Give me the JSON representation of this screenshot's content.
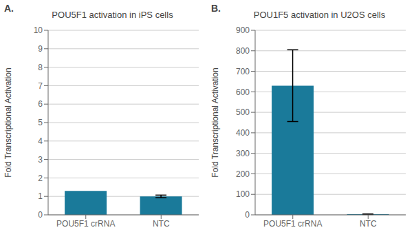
{
  "chart_data": [
    {
      "type": "bar",
      "title": "POU5F1 activation in iPS cells",
      "annotations": [
        "A."
      ],
      "categories": [
        "POU5F1 crRNA",
        "NTC"
      ],
      "values": [
        1.3,
        1.0
      ],
      "errors": [
        0.0,
        0.07
      ],
      "ylabel": "Fold Transcriptional Activation",
      "color": "#1a7a9a",
      "ylim": [
        0,
        10
      ],
      "yticks": [
        0,
        1,
        2,
        3,
        4,
        5,
        6,
        7,
        8,
        9,
        10
      ],
      "grid": true
    },
    {
      "type": "bar",
      "title": "POU1F5 activation in U2OS cells",
      "annotations": [
        "B."
      ],
      "categories": [
        "POU5F1 crRNA",
        "NTC"
      ],
      "values": [
        630,
        3
      ],
      "errors": [
        175,
        1
      ],
      "ylabel": "Fold Transcriptional Activation",
      "color": "#1a7a9a",
      "ylim": [
        0,
        900
      ],
      "yticks": [
        0,
        100,
        200,
        300,
        400,
        500,
        600,
        700,
        800,
        900
      ],
      "grid": true
    }
  ]
}
